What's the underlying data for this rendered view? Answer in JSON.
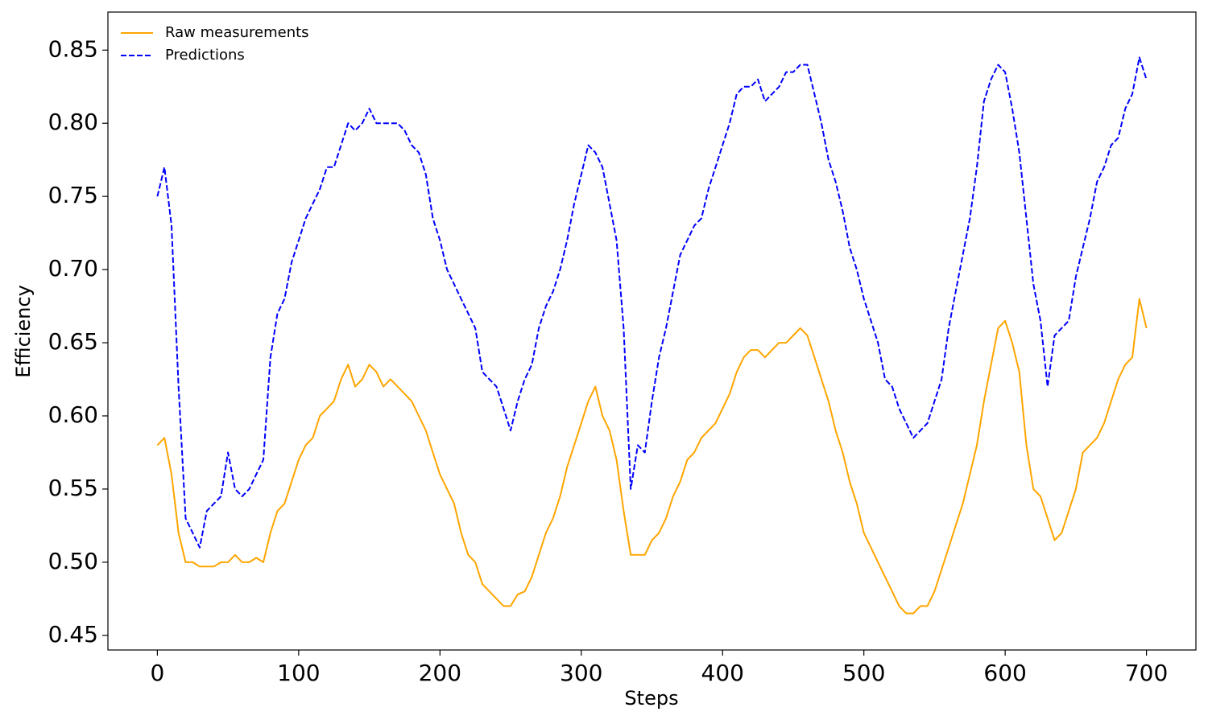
{
  "chart_data": {
    "type": "line",
    "xlabel": "Steps",
    "ylabel": "Efficiency",
    "x": [
      0,
      5,
      10,
      15,
      20,
      25,
      30,
      35,
      40,
      45,
      50,
      55,
      60,
      65,
      70,
      75,
      80,
      85,
      90,
      95,
      100,
      105,
      110,
      115,
      120,
      125,
      130,
      135,
      140,
      145,
      150,
      155,
      160,
      165,
      170,
      175,
      180,
      185,
      190,
      195,
      200,
      205,
      210,
      215,
      220,
      225,
      230,
      235,
      240,
      245,
      250,
      255,
      260,
      265,
      270,
      275,
      280,
      285,
      290,
      295,
      300,
      305,
      310,
      315,
      320,
      325,
      330,
      335,
      340,
      345,
      350,
      355,
      360,
      365,
      370,
      375,
      380,
      385,
      390,
      395,
      400,
      405,
      410,
      415,
      420,
      425,
      430,
      435,
      440,
      445,
      450,
      455,
      460,
      465,
      470,
      475,
      480,
      485,
      490,
      495,
      500,
      505,
      510,
      515,
      520,
      525,
      530,
      535,
      540,
      545,
      550,
      555,
      560,
      565,
      570,
      575,
      580,
      585,
      590,
      595,
      600,
      605,
      610,
      615,
      620,
      625,
      630,
      635,
      640,
      645,
      650,
      655,
      660,
      665,
      670,
      675,
      680,
      685,
      690,
      695,
      700
    ],
    "series": [
      {
        "name": "Raw measurements",
        "color": "#ffa500",
        "style": "solid",
        "values": [
          0.58,
          0.585,
          0.56,
          0.52,
          0.5,
          0.5,
          0.497,
          0.497,
          0.497,
          0.5,
          0.5,
          0.505,
          0.5,
          0.5,
          0.503,
          0.5,
          0.52,
          0.535,
          0.54,
          0.555,
          0.57,
          0.58,
          0.585,
          0.6,
          0.605,
          0.61,
          0.625,
          0.635,
          0.62,
          0.625,
          0.635,
          0.63,
          0.62,
          0.625,
          0.62,
          0.615,
          0.61,
          0.6,
          0.59,
          0.575,
          0.56,
          0.55,
          0.54,
          0.52,
          0.505,
          0.5,
          0.485,
          0.48,
          0.475,
          0.47,
          0.47,
          0.478,
          0.48,
          0.49,
          0.505,
          0.52,
          0.53,
          0.545,
          0.565,
          0.58,
          0.595,
          0.61,
          0.62,
          0.6,
          0.59,
          0.57,
          0.535,
          0.505,
          0.505,
          0.505,
          0.515,
          0.52,
          0.53,
          0.545,
          0.555,
          0.57,
          0.575,
          0.585,
          0.59,
          0.595,
          0.605,
          0.615,
          0.63,
          0.64,
          0.645,
          0.645,
          0.64,
          0.645,
          0.65,
          0.65,
          0.655,
          0.66,
          0.655,
          0.64,
          0.625,
          0.61,
          0.59,
          0.575,
          0.555,
          0.54,
          0.52,
          0.51,
          0.5,
          0.49,
          0.48,
          0.47,
          0.465,
          0.465,
          0.47,
          0.47,
          0.48,
          0.495,
          0.51,
          0.525,
          0.54,
          0.56,
          0.58,
          0.61,
          0.635,
          0.66,
          0.665,
          0.65,
          0.63,
          0.58,
          0.55,
          0.545,
          0.53,
          0.515,
          0.52,
          0.535,
          0.55,
          0.575,
          0.58,
          0.585,
          0.595,
          0.61,
          0.625,
          0.635,
          0.64,
          0.68,
          0.66
        ]
      },
      {
        "name": "Predictions",
        "color": "#0000ff",
        "style": "dashed",
        "values": [
          0.75,
          0.77,
          0.73,
          0.62,
          0.53,
          0.52,
          0.51,
          0.535,
          0.54,
          0.545,
          0.575,
          0.55,
          0.545,
          0.55,
          0.56,
          0.57,
          0.64,
          0.67,
          0.68,
          0.705,
          0.72,
          0.735,
          0.745,
          0.755,
          0.77,
          0.77,
          0.785,
          0.8,
          0.795,
          0.8,
          0.81,
          0.8,
          0.8,
          0.8,
          0.8,
          0.795,
          0.785,
          0.78,
          0.765,
          0.735,
          0.72,
          0.7,
          0.69,
          0.68,
          0.67,
          0.66,
          0.63,
          0.625,
          0.62,
          0.605,
          0.59,
          0.61,
          0.625,
          0.635,
          0.66,
          0.675,
          0.685,
          0.7,
          0.72,
          0.745,
          0.765,
          0.785,
          0.78,
          0.77,
          0.745,
          0.72,
          0.66,
          0.55,
          0.58,
          0.575,
          0.61,
          0.64,
          0.66,
          0.685,
          0.71,
          0.72,
          0.73,
          0.735,
          0.755,
          0.77,
          0.785,
          0.8,
          0.82,
          0.825,
          0.825,
          0.83,
          0.815,
          0.82,
          0.825,
          0.835,
          0.835,
          0.84,
          0.84,
          0.82,
          0.8,
          0.775,
          0.76,
          0.74,
          0.715,
          0.7,
          0.68,
          0.665,
          0.65,
          0.625,
          0.62,
          0.605,
          0.595,
          0.585,
          0.59,
          0.595,
          0.61,
          0.625,
          0.66,
          0.685,
          0.71,
          0.735,
          0.77,
          0.815,
          0.83,
          0.84,
          0.835,
          0.81,
          0.78,
          0.735,
          0.69,
          0.665,
          0.62,
          0.655,
          0.66,
          0.665,
          0.695,
          0.715,
          0.735,
          0.76,
          0.77,
          0.785,
          0.79,
          0.81,
          0.82,
          0.845,
          0.83
        ]
      }
    ],
    "xlim": [
      -35,
      735
    ],
    "xticks": [
      0,
      100,
      200,
      300,
      400,
      500,
      600,
      700
    ],
    "ylim": [
      0.44,
      0.876
    ],
    "yticks": [
      0.45,
      {
        "value": 0.5,
        "label": "0.50"
      },
      0.55,
      {
        "value": 0.6,
        "label": "0.60"
      },
      0.65,
      {
        "value": 0.7,
        "label": "0.70"
      },
      0.75,
      {
        "value": 0.8,
        "label": "0.80"
      },
      0.85
    ],
    "grid": false,
    "legend": "upper left"
  }
}
